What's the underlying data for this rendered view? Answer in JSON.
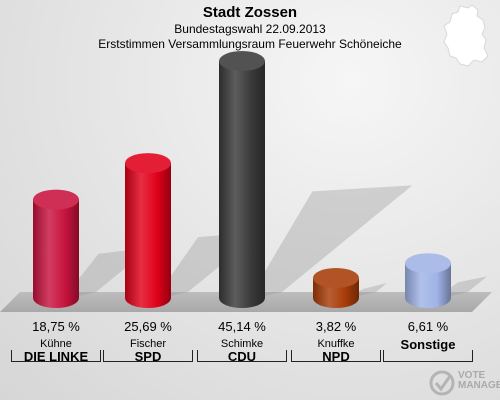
{
  "header": {
    "title": "Stadt Zossen",
    "subtitle1": "Bundestagswahl 22.09.2013",
    "subtitle2": "Erststimmen Versammlungsraum Feuerwehr Schöneiche"
  },
  "logo": {
    "line1": "VOTE",
    "line2": "MANAGER"
  },
  "icons": {
    "map": "germany-map-icon",
    "logo": "vote-manager-logo-icon"
  },
  "chart_data": {
    "type": "bar",
    "title": "Stadt Zossen",
    "categories": [
      "Kühne",
      "Fischer",
      "Schimke",
      "Knuffke",
      "Sonstige"
    ],
    "parties": [
      "DIE LINKE",
      "SPD",
      "CDU",
      "NPD",
      ""
    ],
    "values": [
      18.75,
      25.69,
      45.14,
      3.82,
      6.61
    ],
    "value_labels": [
      "18,75 %",
      "25,69 %",
      "45,14 %",
      "3,82 %",
      "6,61 %"
    ],
    "colors": [
      "#c8133e",
      "#e0001a",
      "#3a3a3a",
      "#a83c08",
      "#9fb3e6"
    ],
    "ylim": [
      0,
      50
    ],
    "grid": false,
    "legend": "none"
  }
}
